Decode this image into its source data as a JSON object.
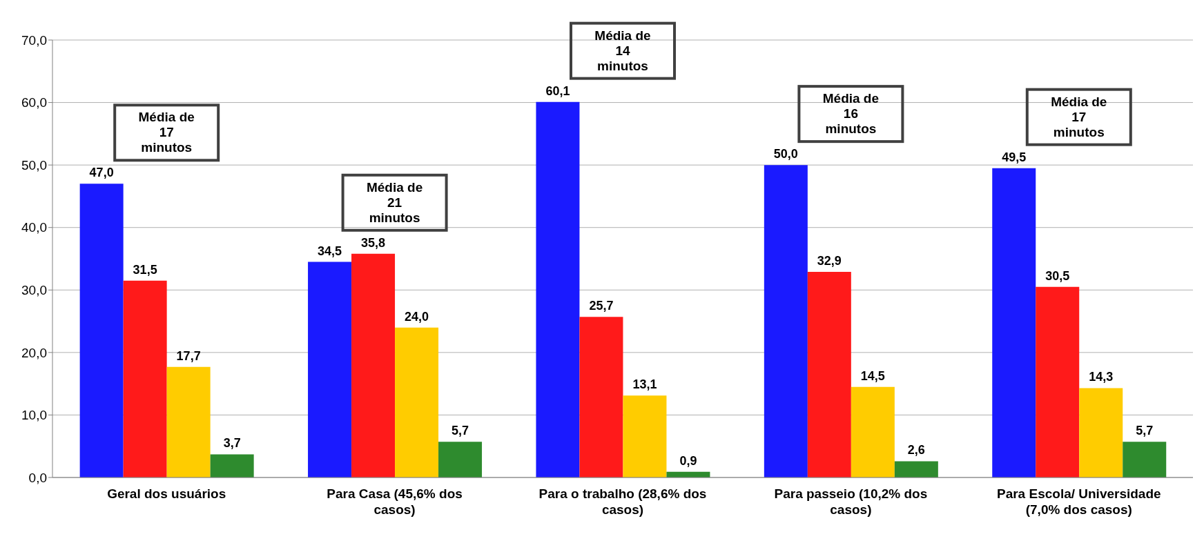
{
  "chart_data": {
    "type": "bar",
    "categories": [
      "Geral dos usuários",
      "Para Casa (45,6% dos casos)",
      "Para o trabalho (28,6% dos casos)",
      "Para passeio (10,2% dos casos)",
      "Para Escola/ Universidade (7,0% dos casos)"
    ],
    "series": [
      {
        "color": "#1a1aff",
        "values": [
          47.0,
          34.5,
          60.1,
          50.0,
          49.5
        ],
        "value_labels": [
          "47,0",
          "34,5",
          "60,1",
          "50,0",
          "49,5"
        ]
      },
      {
        "color": "#ff1a1a",
        "values": [
          31.5,
          35.8,
          25.7,
          32.9,
          30.5
        ],
        "value_labels": [
          "31,5",
          "35,8",
          "25,7",
          "32,9",
          "30,5"
        ]
      },
      {
        "color": "#ffcc00",
        "values": [
          17.7,
          24.0,
          13.1,
          14.5,
          14.3
        ],
        "value_labels": [
          "17,7",
          "24,0",
          "13,1",
          "14,5",
          "14,3"
        ]
      },
      {
        "color": "#2e8b2e",
        "values": [
          3.7,
          5.7,
          0.9,
          2.6,
          5.7
        ],
        "value_labels": [
          "3,7",
          "5,7",
          "0,9",
          "2,6",
          "5,7"
        ]
      }
    ],
    "ylim": [
      0,
      70
    ],
    "yticks": [
      {
        "value": 0,
        "label": "0,0"
      },
      {
        "value": 10,
        "label": "10,0"
      },
      {
        "value": 20,
        "label": "20,0"
      },
      {
        "value": 30,
        "label": "30,0"
      },
      {
        "value": 40,
        "label": "40,0"
      },
      {
        "value": 50,
        "label": "50,0"
      },
      {
        "value": 60,
        "label": "60,0"
      },
      {
        "value": 70,
        "label": "70,0"
      }
    ],
    "grid": "y",
    "annotations": [
      "Média de 17 minutos",
      "Média de 21 minutos",
      "Média de 14 minutos",
      "Média de 16 minutos",
      "Média de 17 minutos"
    ]
  }
}
